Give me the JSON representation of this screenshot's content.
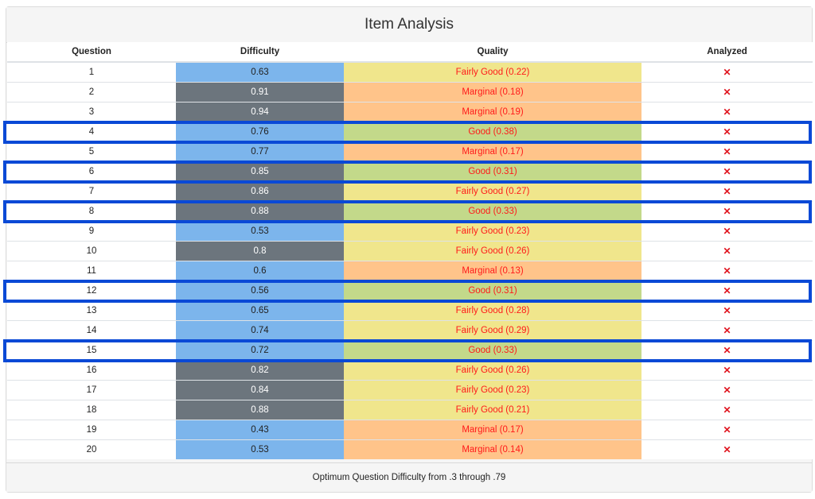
{
  "title": "Item Analysis",
  "columns": [
    "Question",
    "Difficulty",
    "Quality",
    "Analyzed"
  ],
  "colors": {
    "difficulty_optimal": "#7cb5ec",
    "difficulty_outside": "#6c757d",
    "quality_fairly_good": "#f0e68c",
    "quality_marginal": "#ffc48a",
    "quality_good": "#c3d98a",
    "highlight": "#0a49d6"
  },
  "rows": [
    {
      "q": "1",
      "d": "0.63",
      "d_band": "optimal",
      "quality": "Fairly Good (0.22)",
      "qual_class": "fair",
      "analyzed": "✕",
      "highlighted": false
    },
    {
      "q": "2",
      "d": "0.91",
      "d_band": "outside",
      "quality": "Marginal (0.18)",
      "qual_class": "marg",
      "analyzed": "✕",
      "highlighted": false
    },
    {
      "q": "3",
      "d": "0.94",
      "d_band": "outside",
      "quality": "Marginal (0.19)",
      "qual_class": "marg",
      "analyzed": "✕",
      "highlighted": false
    },
    {
      "q": "4",
      "d": "0.76",
      "d_band": "optimal",
      "quality": "Good (0.38)",
      "qual_class": "good",
      "analyzed": "✕",
      "highlighted": true
    },
    {
      "q": "5",
      "d": "0.77",
      "d_band": "optimal",
      "quality": "Marginal (0.17)",
      "qual_class": "marg",
      "analyzed": "✕",
      "highlighted": false
    },
    {
      "q": "6",
      "d": "0.85",
      "d_band": "outside",
      "quality": "Good (0.31)",
      "qual_class": "good",
      "analyzed": "✕",
      "highlighted": true
    },
    {
      "q": "7",
      "d": "0.86",
      "d_band": "outside",
      "quality": "Fairly Good (0.27)",
      "qual_class": "fair",
      "analyzed": "✕",
      "highlighted": false
    },
    {
      "q": "8",
      "d": "0.88",
      "d_band": "outside",
      "quality": "Good (0.33)",
      "qual_class": "good",
      "analyzed": "✕",
      "highlighted": true
    },
    {
      "q": "9",
      "d": "0.53",
      "d_band": "optimal",
      "quality": "Fairly Good (0.23)",
      "qual_class": "fair",
      "analyzed": "✕",
      "highlighted": false
    },
    {
      "q": "10",
      "d": "0.8",
      "d_band": "outside",
      "quality": "Fairly Good (0.26)",
      "qual_class": "fair",
      "analyzed": "✕",
      "highlighted": false
    },
    {
      "q": "11",
      "d": "0.6",
      "d_band": "optimal",
      "quality": "Marginal (0.13)",
      "qual_class": "marg",
      "analyzed": "✕",
      "highlighted": false
    },
    {
      "q": "12",
      "d": "0.56",
      "d_band": "optimal",
      "quality": "Good (0.31)",
      "qual_class": "good",
      "analyzed": "✕",
      "highlighted": true
    },
    {
      "q": "13",
      "d": "0.65",
      "d_band": "optimal",
      "quality": "Fairly Good (0.28)",
      "qual_class": "fair",
      "analyzed": "✕",
      "highlighted": false
    },
    {
      "q": "14",
      "d": "0.74",
      "d_band": "optimal",
      "quality": "Fairly Good (0.29)",
      "qual_class": "fair",
      "analyzed": "✕",
      "highlighted": false
    },
    {
      "q": "15",
      "d": "0.72",
      "d_band": "optimal",
      "quality": "Good (0.33)",
      "qual_class": "good",
      "analyzed": "✕",
      "highlighted": true
    },
    {
      "q": "16",
      "d": "0.82",
      "d_band": "outside",
      "quality": "Fairly Good (0.26)",
      "qual_class": "fair",
      "analyzed": "✕",
      "highlighted": false
    },
    {
      "q": "17",
      "d": "0.84",
      "d_band": "outside",
      "quality": "Fairly Good (0.23)",
      "qual_class": "fair",
      "analyzed": "✕",
      "highlighted": false
    },
    {
      "q": "18",
      "d": "0.88",
      "d_band": "outside",
      "quality": "Fairly Good (0.21)",
      "qual_class": "fair",
      "analyzed": "✕",
      "highlighted": false
    },
    {
      "q": "19",
      "d": "0.43",
      "d_band": "optimal",
      "quality": "Marginal (0.17)",
      "qual_class": "marg",
      "analyzed": "✕",
      "highlighted": false
    },
    {
      "q": "20",
      "d": "0.53",
      "d_band": "optimal",
      "quality": "Marginal (0.14)",
      "qual_class": "marg",
      "analyzed": "✕",
      "highlighted": false
    }
  ],
  "footer": "Optimum Question Difficulty from .3 through .79"
}
